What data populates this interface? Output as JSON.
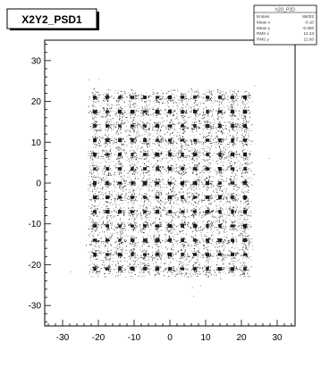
{
  "title": "X2Y2_PSD1",
  "stats_box": {
    "header": "h2D_P2D",
    "rows": [
      {
        "label": "Entries",
        "value": "85002"
      },
      {
        "label": "Mean x",
        "value": "-0.10"
      },
      {
        "label": "Mean y",
        "value": "-0.050"
      },
      {
        "label": "RMS x",
        "value": "12.43"
      },
      {
        "label": "RMS y",
        "value": "12.60"
      }
    ]
  },
  "chart_data": {
    "type": "scatter",
    "title": "X2Y2_PSD1",
    "xlabel": "",
    "ylabel": "",
    "xlim": [
      -35,
      35
    ],
    "ylim": [
      -35,
      35
    ],
    "x_ticks": [
      -30,
      -20,
      -10,
      0,
      10,
      20,
      30
    ],
    "y_ticks": [
      -30,
      -20,
      -10,
      0,
      10,
      20,
      30
    ],
    "grid": false,
    "legend": "none",
    "colors": {
      "points": "#000000",
      "background": "#ffffff",
      "frame": "#000000"
    },
    "spot_grid": {
      "x_centers": [
        -21,
        -17.5,
        -14,
        -10.5,
        -7,
        -3.5,
        0,
        3.5,
        7,
        10.5,
        14,
        17.5,
        21
      ],
      "y_centers": [
        21,
        17.5,
        14,
        10.5,
        7,
        3.5,
        0,
        -3.5,
        -7,
        -10.5,
        -14,
        -17.5,
        -21
      ]
    },
    "diffuse_region": {
      "x": [
        -23,
        23
      ],
      "y": [
        -23,
        23
      ]
    }
  }
}
